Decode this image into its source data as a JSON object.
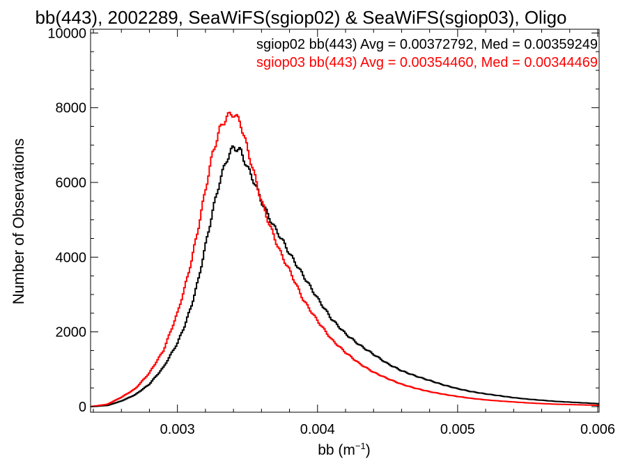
{
  "chart_data": {
    "type": "line",
    "title": "bb(443), 2002289, SeaWiFS(sgiop02) & SeaWiFS(sgiop03), Oligo",
    "xlabel": "bb (m",
    "xlabel_superscript": "−1",
    "xlabel_suffix": ")",
    "ylabel": "Number of Observations",
    "xlim": [
      0.00238,
      0.00601
    ],
    "ylim": [
      -150,
      10100
    ],
    "x_ticks": [
      {
        "value": 0.003,
        "label": "0.003"
      },
      {
        "value": 0.004,
        "label": "0.004"
      },
      {
        "value": 0.005,
        "label": "0.005"
      },
      {
        "value": 0.006,
        "label": "0.006"
      }
    ],
    "y_ticks": [
      {
        "value": 0,
        "label": "0"
      },
      {
        "value": 2000,
        "label": "2000"
      },
      {
        "value": 4000,
        "label": "4000"
      },
      {
        "value": 6000,
        "label": "6000"
      },
      {
        "value": 8000,
        "label": "8000"
      },
      {
        "value": 10000,
        "label": "10000"
      }
    ],
    "grid": false,
    "legend_position": "top-right",
    "step": "histogram",
    "series": [
      {
        "name": "sgiop02 bb(443) Avg = 0.00372792, Med = 0.00359249",
        "color": "#000000",
        "x": [
          0.00238,
          0.0025,
          0.0026,
          0.0027,
          0.0028,
          0.0029,
          0.003,
          0.00305,
          0.0031,
          0.00315,
          0.0032,
          0.00325,
          0.0033,
          0.00335,
          0.0034,
          0.00345,
          0.0035,
          0.00355,
          0.0036,
          0.00365,
          0.0037,
          0.00375,
          0.0038,
          0.0039,
          0.004,
          0.0041,
          0.0042,
          0.0043,
          0.0044,
          0.0045,
          0.0046,
          0.0047,
          0.0048,
          0.0049,
          0.005,
          0.0051,
          0.0052,
          0.0053,
          0.0054,
          0.0055,
          0.0056,
          0.0057,
          0.0058,
          0.0059,
          0.006
        ],
        "y": [
          0,
          30,
          150,
          320,
          600,
          1050,
          1700,
          2150,
          2700,
          3400,
          4300,
          5200,
          6000,
          6600,
          6950,
          6850,
          6400,
          6000,
          5500,
          5100,
          4750,
          4450,
          4100,
          3500,
          2900,
          2350,
          1950,
          1650,
          1400,
          1150,
          960,
          820,
          700,
          580,
          480,
          400,
          340,
          290,
          240,
          200,
          170,
          140,
          120,
          100,
          80
        ]
      },
      {
        "name": "sgiop03 bb(443) Avg = 0.00354460, Med = 0.00344469",
        "color": "#ff0000",
        "x": [
          0.00238,
          0.0025,
          0.0026,
          0.0027,
          0.0028,
          0.0029,
          0.003,
          0.00305,
          0.0031,
          0.00315,
          0.0032,
          0.00325,
          0.0033,
          0.00335,
          0.0034,
          0.00345,
          0.0035,
          0.00355,
          0.0036,
          0.00365,
          0.0037,
          0.00375,
          0.0038,
          0.0039,
          0.004,
          0.0041,
          0.0042,
          0.0043,
          0.0044,
          0.0045,
          0.0046,
          0.0047,
          0.0048,
          0.0049,
          0.005,
          0.0051,
          0.0052,
          0.0053,
          0.0054,
          0.0055,
          0.0056,
          0.0057,
          0.0058,
          0.0059,
          0.006
        ],
        "y": [
          0,
          60,
          250,
          480,
          900,
          1500,
          2500,
          3150,
          3900,
          4800,
          5800,
          6750,
          7400,
          7750,
          7850,
          7600,
          6900,
          6200,
          5500,
          4950,
          4450,
          4000,
          3650,
          2850,
          2300,
          1800,
          1450,
          1150,
          920,
          750,
          600,
          490,
          400,
          330,
          270,
          220,
          180,
          150,
          125,
          100,
          80,
          65,
          55,
          45,
          35
        ]
      }
    ]
  }
}
